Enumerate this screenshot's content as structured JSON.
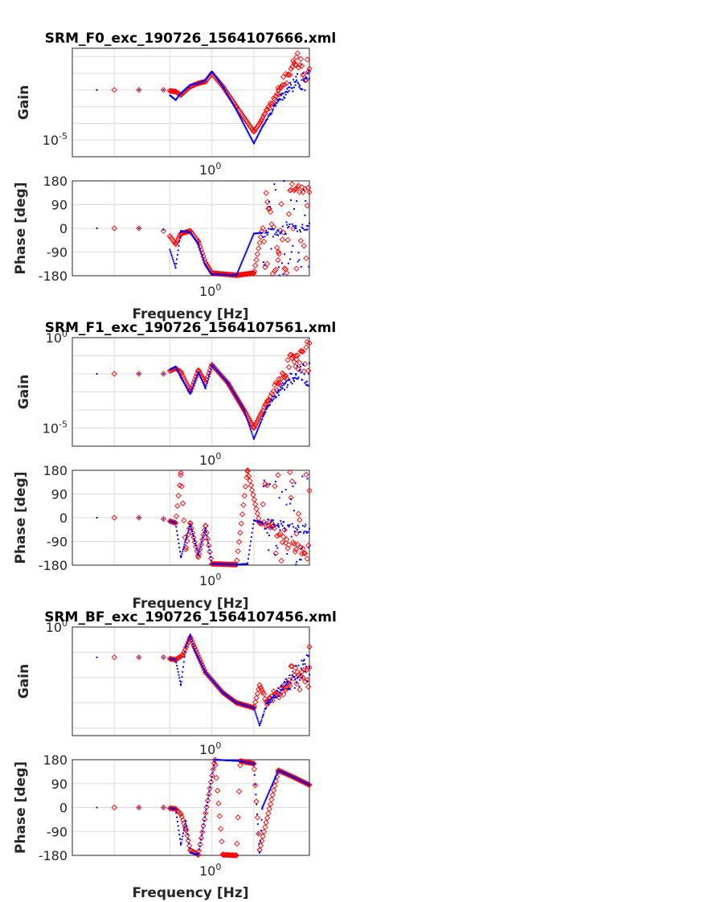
{
  "colors": {
    "measured": "#ff0000",
    "model": "#0000ff",
    "grid": "#dcdcdc",
    "axis": "#262626"
  },
  "chart_data": [
    {
      "type": "scatter",
      "title": "SRM_F0_exc_190726_1564107666.xml",
      "gain_ylabel": "Gain",
      "phase_ylabel": "Phase [deg]",
      "xlabel": "Frequency [Hz]",
      "x_scale": "log",
      "xlim": [
        0.1,
        5
      ],
      "x_tick_labels": [
        {
          "value": 1,
          "base": "10",
          "exp": "0"
        }
      ],
      "gain_scale": "log",
      "gain_ylim_log10": [
        -6,
        0.5
      ],
      "gain_tick_labels": [
        {
          "value_log10": -5,
          "base": "10",
          "exp": "-5"
        }
      ],
      "phase_ylim": [
        -180,
        180
      ],
      "phase_ticks": [
        "180",
        "90",
        "0",
        "-90",
        "-180"
      ],
      "series": [
        {
          "name": "",
          "marker": "diamond",
          "color": "#ff0000",
          "gain": [
            [
              0.2,
              -2.0
            ],
            [
              0.3,
              -2.0
            ],
            [
              0.45,
              -2.0
            ],
            [
              0.55,
              -2.1
            ],
            [
              0.6,
              -2.3
            ],
            [
              0.7,
              -1.8
            ],
            [
              0.8,
              -1.6
            ],
            [
              0.9,
              -1.5
            ],
            [
              1.0,
              -1.0
            ],
            [
              1.2,
              -1.8
            ],
            [
              1.5,
              -3.0
            ],
            [
              2.0,
              -4.5
            ],
            [
              2.2,
              -4.0
            ],
            [
              3.0,
              -2.0
            ],
            [
              4.0,
              -0.5
            ]
          ],
          "phase": [
            [
              0.2,
              0
            ],
            [
              0.3,
              0
            ],
            [
              0.45,
              -10
            ],
            [
              0.5,
              -30
            ],
            [
              0.55,
              -60
            ],
            [
              0.6,
              -20
            ],
            [
              0.7,
              -10
            ],
            [
              0.8,
              -50
            ],
            [
              0.9,
              -130
            ],
            [
              1.0,
              -170
            ],
            [
              1.5,
              -178
            ],
            [
              2.0,
              -170
            ],
            [
              2.5,
              100
            ],
            [
              3.0,
              -90
            ],
            [
              4.0,
              150
            ]
          ]
        },
        {
          "name": "",
          "marker": "dot",
          "color": "#0000ff",
          "gain": [
            [
              0.15,
              -2.0
            ],
            [
              0.3,
              -2.0
            ],
            [
              0.45,
              -2.0
            ],
            [
              0.55,
              -2.6
            ],
            [
              0.6,
              -2.2
            ],
            [
              0.7,
              -1.7
            ],
            [
              0.8,
              -1.6
            ],
            [
              0.9,
              -1.4
            ],
            [
              1.0,
              -0.9
            ],
            [
              1.2,
              -1.8
            ],
            [
              1.5,
              -3.2
            ],
            [
              2.0,
              -5.2
            ],
            [
              2.3,
              -4.2
            ],
            [
              3.0,
              -2.6
            ],
            [
              4.0,
              -1.5
            ]
          ],
          "phase": [
            [
              0.15,
              0
            ],
            [
              0.3,
              0
            ],
            [
              0.45,
              -5
            ],
            [
              0.55,
              -150
            ],
            [
              0.6,
              -10
            ],
            [
              0.7,
              -15
            ],
            [
              0.8,
              -60
            ],
            [
              0.9,
              -140
            ],
            [
              1.0,
              -175
            ],
            [
              1.5,
              -178
            ],
            [
              2.0,
              -20
            ],
            [
              2.5,
              -15
            ],
            [
              3.0,
              -10
            ],
            [
              4.0,
              0
            ]
          ]
        }
      ]
    },
    {
      "type": "scatter",
      "title": "SRM_F1_exc_190726_1564107561.xml",
      "gain_ylabel": "Gain",
      "phase_ylabel": "Phase [deg]",
      "xlabel": "Frequency [Hz]",
      "x_scale": "log",
      "xlim": [
        0.1,
        5
      ],
      "x_tick_labels": [
        {
          "value": 1,
          "base": "10",
          "exp": "0"
        }
      ],
      "gain_scale": "log",
      "gain_ylim_log10": [
        -6,
        0
      ],
      "gain_tick_labels": [
        {
          "value_log10": 0,
          "base": "10",
          "exp": "0"
        },
        {
          "value_log10": -5,
          "base": "10",
          "exp": "-5"
        }
      ],
      "phase_ylim": [
        -180,
        180
      ],
      "phase_ticks": [
        "180",
        "90",
        "0",
        "-90",
        "-180"
      ],
      "series": [
        {
          "name": "",
          "marker": "diamond",
          "color": "#ff0000",
          "gain": [
            [
              0.2,
              -2.0
            ],
            [
              0.3,
              -2.0
            ],
            [
              0.45,
              -2.0
            ],
            [
              0.55,
              -1.7
            ],
            [
              0.6,
              -1.9
            ],
            [
              0.7,
              -3.0
            ],
            [
              0.8,
              -1.8
            ],
            [
              0.9,
              -2.5
            ],
            [
              1.0,
              -1.5
            ],
            [
              1.3,
              -2.5
            ],
            [
              1.7,
              -4.0
            ],
            [
              2.0,
              -5.0
            ],
            [
              2.5,
              -3.5
            ],
            [
              3.0,
              -2.5
            ],
            [
              4.0,
              -1.0
            ]
          ],
          "phase": [
            [
              0.2,
              0
            ],
            [
              0.3,
              0
            ],
            [
              0.45,
              -5
            ],
            [
              0.55,
              -20
            ],
            [
              0.6,
              170
            ],
            [
              0.65,
              -120
            ],
            [
              0.7,
              -20
            ],
            [
              0.8,
              -150
            ],
            [
              0.9,
              -30
            ],
            [
              1.0,
              -175
            ],
            [
              1.5,
              -178
            ],
            [
              1.8,
              180
            ],
            [
              2.2,
              -20
            ],
            [
              2.8,
              -40
            ],
            [
              4.0,
              -120
            ]
          ]
        },
        {
          "name": "",
          "marker": "dot",
          "color": "#0000ff",
          "gain": [
            [
              0.15,
              -2.0
            ],
            [
              0.3,
              -2.0
            ],
            [
              0.45,
              -2.0
            ],
            [
              0.55,
              -1.6
            ],
            [
              0.6,
              -2.2
            ],
            [
              0.7,
              -3.1
            ],
            [
              0.8,
              -1.9
            ],
            [
              0.9,
              -2.8
            ],
            [
              1.0,
              -1.5
            ],
            [
              1.3,
              -2.5
            ],
            [
              1.7,
              -4.0
            ],
            [
              2.0,
              -5.6
            ],
            [
              2.5,
              -3.8
            ],
            [
              3.0,
              -3.0
            ],
            [
              4.0,
              -2.0
            ]
          ],
          "phase": [
            [
              0.15,
              0
            ],
            [
              0.3,
              0
            ],
            [
              0.45,
              -5
            ],
            [
              0.55,
              -20
            ],
            [
              0.6,
              -150
            ],
            [
              0.7,
              -25
            ],
            [
              0.8,
              -140
            ],
            [
              0.9,
              -40
            ],
            [
              1.0,
              -175
            ],
            [
              1.5,
              -178
            ],
            [
              1.8,
              -175
            ],
            [
              2.0,
              -10
            ],
            [
              2.5,
              -25
            ],
            [
              3.0,
              -30
            ],
            [
              4.0,
              -40
            ]
          ]
        }
      ]
    },
    {
      "type": "scatter",
      "title": "SRM_BF_exc_190726_1564107456.xml",
      "gain_ylabel": "Gain",
      "phase_ylabel": "Phase [deg]",
      "xlabel": "Frequency [Hz]",
      "x_scale": "log",
      "xlim": [
        0.1,
        5
      ],
      "x_tick_labels": [
        {
          "value": 1,
          "base": "10",
          "exp": "0"
        }
      ],
      "gain_scale": "log",
      "gain_ylim_log10": [
        -4.3,
        0
      ],
      "gain_tick_labels": [
        {
          "value_log10": 0,
          "base": "10",
          "exp": "0"
        }
      ],
      "phase_ylim": [
        -180,
        180
      ],
      "phase_ticks": [
        "180",
        "90",
        "0",
        "-90",
        "-180"
      ],
      "series": [
        {
          "name": "",
          "marker": "diamond",
          "color": "#ff0000",
          "gain": [
            [
              0.2,
              -1.2
            ],
            [
              0.3,
              -1.2
            ],
            [
              0.45,
              -1.2
            ],
            [
              0.55,
              -1.3
            ],
            [
              0.62,
              -1.1
            ],
            [
              0.7,
              -0.4
            ],
            [
              0.75,
              -0.8
            ],
            [
              0.9,
              -1.8
            ],
            [
              1.2,
              -2.6
            ],
            [
              1.5,
              -3.0
            ],
            [
              2.0,
              -3.2
            ],
            [
              2.2,
              -2.3
            ],
            [
              2.5,
              -3.0
            ],
            [
              3.5,
              -2.2
            ],
            [
              5.0,
              -1.6
            ]
          ],
          "phase": [
            [
              0.2,
              0
            ],
            [
              0.3,
              0
            ],
            [
              0.45,
              0
            ],
            [
              0.55,
              -5
            ],
            [
              0.6,
              -25
            ],
            [
              0.65,
              -80
            ],
            [
              0.7,
              -160
            ],
            [
              0.8,
              -178
            ],
            [
              1.2,
              -178
            ],
            [
              1.5,
              -180
            ],
            [
              1.05,
              180
            ],
            [
              1.6,
              175
            ],
            [
              2.0,
              165
            ],
            [
              2.2,
              -160
            ],
            [
              3.0,
              140
            ],
            [
              4.0,
              110
            ],
            [
              5.0,
              85
            ]
          ]
        },
        {
          "name": "",
          "marker": "dot",
          "color": "#0000ff",
          "gain": [
            [
              0.15,
              -1.2
            ],
            [
              0.3,
              -1.2
            ],
            [
              0.45,
              -1.2
            ],
            [
              0.55,
              -1.3
            ],
            [
              0.6,
              -2.3
            ],
            [
              0.65,
              -0.8
            ],
            [
              0.7,
              -0.3
            ],
            [
              0.75,
              -0.9
            ],
            [
              0.9,
              -1.8
            ],
            [
              1.2,
              -2.6
            ],
            [
              1.5,
              -3.0
            ],
            [
              2.0,
              -3.2
            ],
            [
              2.2,
              -3.9
            ],
            [
              2.5,
              -3.0
            ],
            [
              3.5,
              -2.2
            ],
            [
              5.0,
              -1.6
            ]
          ],
          "phase": [
            [
              0.15,
              0
            ],
            [
              0.3,
              0
            ],
            [
              0.45,
              0
            ],
            [
              0.55,
              -5
            ],
            [
              0.6,
              -140
            ],
            [
              0.65,
              -50
            ],
            [
              0.7,
              -170
            ],
            [
              0.8,
              -178
            ],
            [
              1.05,
              180
            ],
            [
              1.6,
              175
            ],
            [
              2.0,
              165
            ],
            [
              2.2,
              -170
            ],
            [
              2.3,
              0
            ],
            [
              3.0,
              140
            ],
            [
              4.0,
              110
            ],
            [
              5.0,
              85
            ]
          ]
        }
      ]
    }
  ]
}
